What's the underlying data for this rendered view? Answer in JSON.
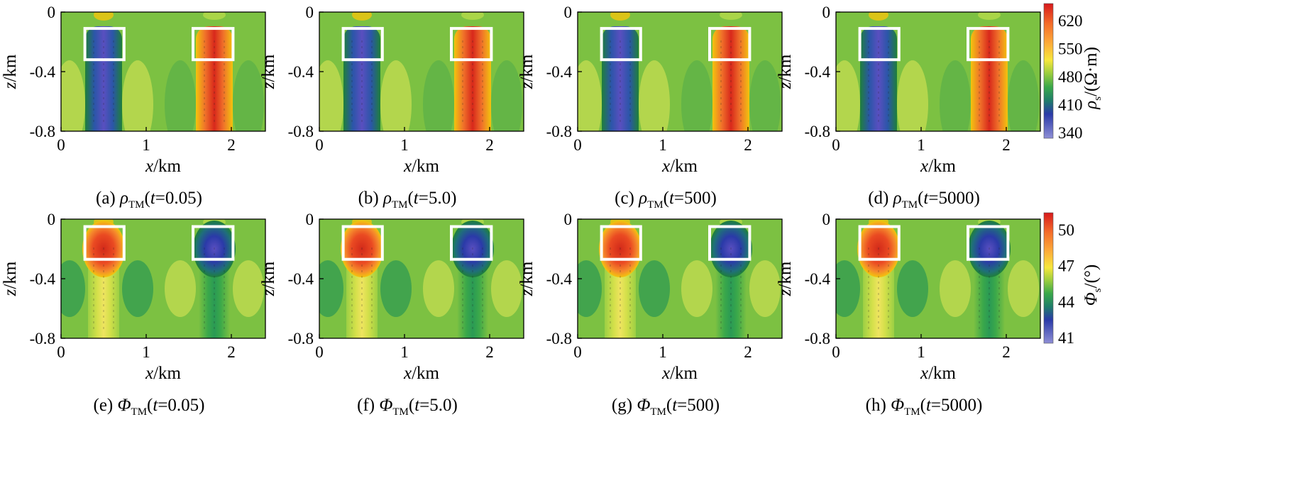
{
  "figure": {
    "colors": {
      "background": "#7cc142",
      "low": "#2a3aa8",
      "low_edge": "#1f7f3a",
      "high": "#e43a21",
      "high_edge": "#f2c40d",
      "box": "#ffffff"
    }
  },
  "chart_data": [
    {
      "id": "a",
      "type": "heatmap",
      "quantity": "rho",
      "caption_prefix": "(a) ",
      "symbol": "ρ",
      "subscript": "TM",
      "t_value": "0.05",
      "caption_suffix": ")",
      "xlabel_var": "x",
      "xlabel_unit": "/km",
      "ylabel_var": "z",
      "ylabel_unit": "/km",
      "xticks": [
        "0",
        "1",
        "2"
      ],
      "yticks": [
        "0",
        "-0.4",
        "-0.8"
      ],
      "xlim": [
        0,
        2.4
      ],
      "ylim": [
        -0.8,
        0
      ],
      "anomalies": [
        {
          "x": 0.5,
          "kind": "low"
        },
        {
          "x": 1.8,
          "kind": "high"
        }
      ],
      "boxes": [
        {
          "x0": 0.28,
          "x1": 0.74,
          "z0": -0.32,
          "z1": -0.11
        },
        {
          "x0": 1.55,
          "x1": 2.02,
          "z0": -0.32,
          "z1": -0.11
        }
      ]
    },
    {
      "id": "b",
      "type": "heatmap",
      "quantity": "rho",
      "caption_prefix": "(b) ",
      "symbol": "ρ",
      "subscript": "TM",
      "t_value": "5.0",
      "caption_suffix": ")",
      "xlabel_var": "x",
      "xlabel_unit": "/km",
      "ylabel_var": "z",
      "ylabel_unit": "/km",
      "xticks": [
        "0",
        "1",
        "2"
      ],
      "yticks": [
        "0",
        "-0.4",
        "-0.8"
      ],
      "xlim": [
        0,
        2.4
      ],
      "ylim": [
        -0.8,
        0
      ],
      "anomalies": [
        {
          "x": 0.5,
          "kind": "low"
        },
        {
          "x": 1.8,
          "kind": "high"
        }
      ],
      "boxes": [
        {
          "x0": 0.28,
          "x1": 0.74,
          "z0": -0.32,
          "z1": -0.11
        },
        {
          "x0": 1.55,
          "x1": 2.02,
          "z0": -0.32,
          "z1": -0.11
        }
      ]
    },
    {
      "id": "c",
      "type": "heatmap",
      "quantity": "rho",
      "caption_prefix": "(c) ",
      "symbol": "ρ",
      "subscript": "TM",
      "t_value": "500",
      "caption_suffix": ")",
      "xlabel_var": "x",
      "xlabel_unit": "/km",
      "ylabel_var": "z",
      "ylabel_unit": "/km",
      "xticks": [
        "0",
        "1",
        "2"
      ],
      "yticks": [
        "0",
        "-0.4",
        "-0.8"
      ],
      "xlim": [
        0,
        2.4
      ],
      "ylim": [
        -0.8,
        0
      ],
      "anomalies": [
        {
          "x": 0.5,
          "kind": "low"
        },
        {
          "x": 1.8,
          "kind": "high"
        }
      ],
      "boxes": [
        {
          "x0": 0.28,
          "x1": 0.74,
          "z0": -0.32,
          "z1": -0.11
        },
        {
          "x0": 1.55,
          "x1": 2.02,
          "z0": -0.32,
          "z1": -0.11
        }
      ]
    },
    {
      "id": "d",
      "type": "heatmap",
      "quantity": "rho",
      "caption_prefix": "(d) ",
      "symbol": "ρ",
      "subscript": "TM",
      "t_value": "5000",
      "caption_suffix": ")",
      "xlabel_var": "x",
      "xlabel_unit": "/km",
      "ylabel_var": "z",
      "ylabel_unit": "/km",
      "xticks": [
        "0",
        "1",
        "2"
      ],
      "yticks": [
        "0",
        "-0.4",
        "-0.8"
      ],
      "xlim": [
        0,
        2.4
      ],
      "ylim": [
        -0.8,
        0
      ],
      "anomalies": [
        {
          "x": 0.5,
          "kind": "low"
        },
        {
          "x": 1.8,
          "kind": "high"
        }
      ],
      "boxes": [
        {
          "x0": 0.28,
          "x1": 0.74,
          "z0": -0.32,
          "z1": -0.11
        },
        {
          "x0": 1.55,
          "x1": 2.02,
          "z0": -0.32,
          "z1": -0.11
        }
      ]
    },
    {
      "id": "e",
      "type": "heatmap",
      "quantity": "phi",
      "caption_prefix": "(e) ",
      "symbol": "Φ",
      "subscript": "TM",
      "t_value": "0.05",
      "caption_suffix": ")",
      "xlabel_var": "x",
      "xlabel_unit": "/km",
      "ylabel_var": "z",
      "ylabel_unit": "/km",
      "xticks": [
        "0",
        "1",
        "2"
      ],
      "yticks": [
        "0",
        "-0.4",
        "-0.8"
      ],
      "xlim": [
        0,
        2.4
      ],
      "ylim": [
        -0.8,
        0
      ],
      "anomalies": [
        {
          "x": 0.5,
          "kind": "high"
        },
        {
          "x": 1.8,
          "kind": "low"
        }
      ],
      "boxes": [
        {
          "x0": 0.28,
          "x1": 0.74,
          "z0": -0.27,
          "z1": -0.05
        },
        {
          "x0": 1.55,
          "x1": 2.02,
          "z0": -0.27,
          "z1": -0.05
        }
      ]
    },
    {
      "id": "f",
      "type": "heatmap",
      "quantity": "phi",
      "caption_prefix": "(f) ",
      "symbol": "Φ",
      "subscript": "TM",
      "t_value": "5.0",
      "caption_suffix": ")",
      "xlabel_var": "x",
      "xlabel_unit": "/km",
      "ylabel_var": "z",
      "ylabel_unit": "/km",
      "xticks": [
        "0",
        "1",
        "2"
      ],
      "yticks": [
        "0",
        "-0.4",
        "-0.8"
      ],
      "xlim": [
        0,
        2.4
      ],
      "ylim": [
        -0.8,
        0
      ],
      "anomalies": [
        {
          "x": 0.5,
          "kind": "high"
        },
        {
          "x": 1.8,
          "kind": "low"
        }
      ],
      "boxes": [
        {
          "x0": 0.28,
          "x1": 0.74,
          "z0": -0.27,
          "z1": -0.05
        },
        {
          "x0": 1.55,
          "x1": 2.02,
          "z0": -0.27,
          "z1": -0.05
        }
      ]
    },
    {
      "id": "g",
      "type": "heatmap",
      "quantity": "phi",
      "caption_prefix": "(g) ",
      "symbol": "Φ",
      "subscript": "TM",
      "t_value": "500",
      "caption_suffix": ")",
      "xlabel_var": "x",
      "xlabel_unit": "/km",
      "ylabel_var": "z",
      "ylabel_unit": "/km",
      "xticks": [
        "0",
        "1",
        "2"
      ],
      "yticks": [
        "0",
        "-0.4",
        "-0.8"
      ],
      "xlim": [
        0,
        2.4
      ],
      "ylim": [
        -0.8,
        0
      ],
      "anomalies": [
        {
          "x": 0.5,
          "kind": "high"
        },
        {
          "x": 1.8,
          "kind": "low"
        }
      ],
      "boxes": [
        {
          "x0": 0.28,
          "x1": 0.74,
          "z0": -0.27,
          "z1": -0.05
        },
        {
          "x0": 1.55,
          "x1": 2.02,
          "z0": -0.27,
          "z1": -0.05
        }
      ]
    },
    {
      "id": "h",
      "type": "heatmap",
      "quantity": "phi",
      "caption_prefix": "(h) ",
      "symbol": "Φ",
      "subscript": "TM",
      "t_value": "5000",
      "caption_suffix": ")",
      "xlabel_var": "x",
      "xlabel_unit": "/km",
      "ylabel_var": "z",
      "ylabel_unit": "/km",
      "xticks": [
        "0",
        "1",
        "2"
      ],
      "yticks": [
        "0",
        "-0.4",
        "-0.8"
      ],
      "xlim": [
        0,
        2.4
      ],
      "ylim": [
        -0.8,
        0
      ],
      "anomalies": [
        {
          "x": 0.5,
          "kind": "high"
        },
        {
          "x": 1.8,
          "kind": "low"
        }
      ],
      "boxes": [
        {
          "x0": 0.28,
          "x1": 0.74,
          "z0": -0.27,
          "z1": -0.05
        },
        {
          "x0": 1.55,
          "x1": 2.02,
          "z0": -0.27,
          "z1": -0.05
        }
      ]
    }
  ],
  "colorbars": [
    {
      "quantity": "rho",
      "ticks": [
        "620",
        "550",
        "480",
        "410",
        "340"
      ],
      "label_symbol": "ρ",
      "label_sub": "s",
      "label_unit": "/(Ω·m)"
    },
    {
      "quantity": "phi",
      "ticks": [
        "50",
        "47",
        "44",
        "41"
      ],
      "label_symbol": "Φ",
      "label_sub": "s",
      "label_unit": "/(°)"
    }
  ]
}
